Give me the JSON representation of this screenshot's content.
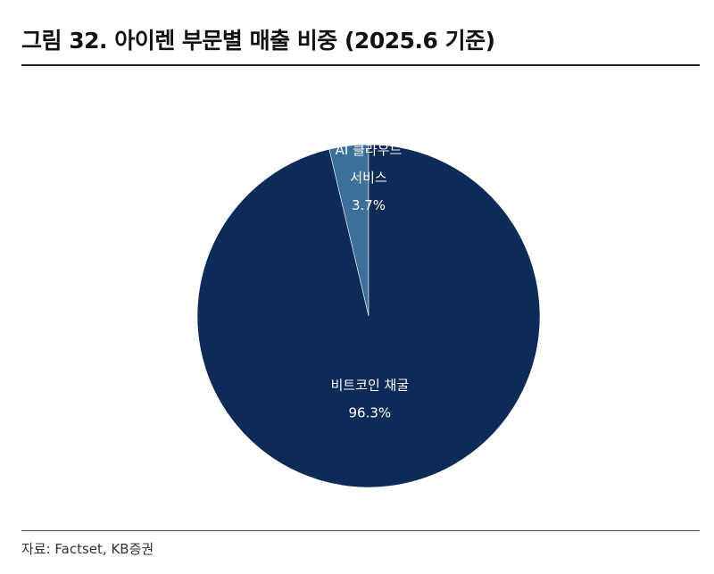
{
  "title": "그림 32. 아이렌 부문별 매출 비중 (2025.6 기준)",
  "source": "자료: Factset, KB증권",
  "colors": {
    "background": "#ffffff",
    "major_slice": "#0c2b57",
    "minor_slice": "#3c6f9a",
    "label_text": "#ffffff"
  },
  "chart_data": {
    "type": "pie",
    "title": "그림 32. 아이렌 부문별 매출 비중 (2025.6 기준)",
    "slices": [
      {
        "label_lines": [
          "AI 클라우드",
          "서비스"
        ],
        "value": 3.7,
        "value_label": "3.7%",
        "color": "#3c6f9a"
      },
      {
        "label_lines": [
          "비트코인 채굴"
        ],
        "value": 96.3,
        "value_label": "96.3%",
        "color": "#0c2b57"
      }
    ],
    "start_angle_deg": 0,
    "direction": "counterclockwise",
    "legend": "none",
    "labels": "inside"
  }
}
